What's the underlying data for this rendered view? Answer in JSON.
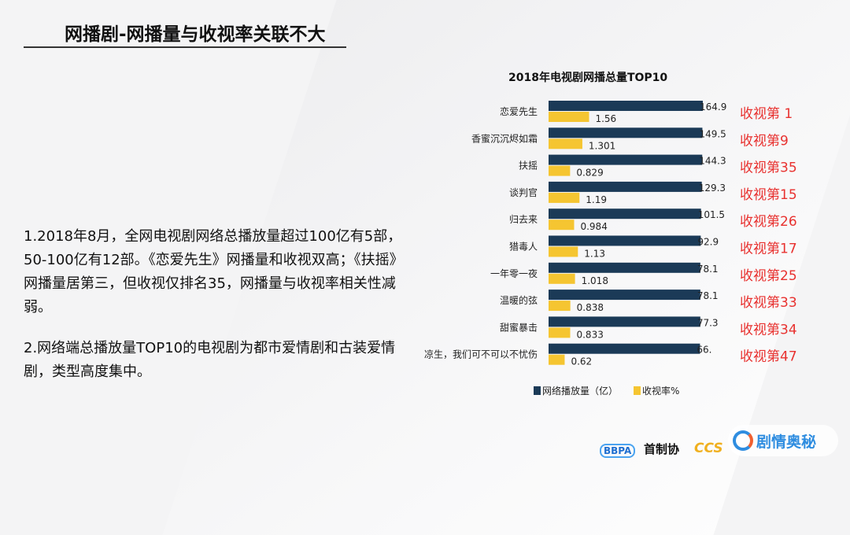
{
  "slide": {
    "title": "网播剧-网播量与收视率关联不大",
    "paragraphs": [
      "1.2018年8月，全网电视剧网络总播放量超过100亿有5部，50-100亿有12部。《恋爱先生》网播量和收视双高；《扶摇》网播量居第三，但收视仅排名35，网播量与收视率相关性减弱。",
      "2.网络端总播放量TOP10的电视剧为都市爱情剧和古装爱情剧，类型高度集中。"
    ]
  },
  "chart_data": {
    "type": "bar",
    "orientation": "horizontal",
    "title": "2018年电视剧网播总量TOP10",
    "categories": [
      "恋爱先生",
      "香蜜沉沉烬如霜",
      "扶摇",
      "谈判官",
      "归去来",
      "猎毒人",
      "一年零一夜",
      "温暖的弦",
      "甜蜜暴击",
      "凉生，我们可不可以不忧伤"
    ],
    "series": [
      {
        "name": "网络播放量（亿）",
        "color": "#1b3a57",
        "values": [
          164.9,
          149.5,
          144.3,
          129.3,
          101.5,
          92.9,
          78.1,
          78.1,
          77.3,
          66.0
        ],
        "labels": [
          "164.9",
          "149.5",
          "144.3",
          "129.3",
          "101.5",
          "92.9",
          "78.1",
          "78.1",
          "77.3",
          "66."
        ]
      },
      {
        "name": "收视率%",
        "color": "#f5c531",
        "values": [
          1.56,
          1.301,
          0.829,
          1.19,
          0.984,
          1.13,
          1.018,
          0.838,
          0.833,
          0.62
        ],
        "labels": [
          "1.56",
          "1.301",
          "0.829",
          "1.19",
          "0.984",
          "1.13",
          "1.018",
          "0.838",
          "0.833",
          "0.62"
        ]
      }
    ],
    "annotations": [
      "收视第 1",
      "收视第9",
      "收视第35",
      "收视第15",
      "收视第26",
      "收视第17",
      "收视第25",
      "收视第33",
      "收视第34",
      "收视第47"
    ],
    "annotation_color": "#e8312f",
    "legend": "bottom"
  },
  "footer": {
    "bbpa": "BBPA",
    "shouzhi": "首制协",
    "cc": "CCS",
    "watermark": "剧情奥秘"
  }
}
